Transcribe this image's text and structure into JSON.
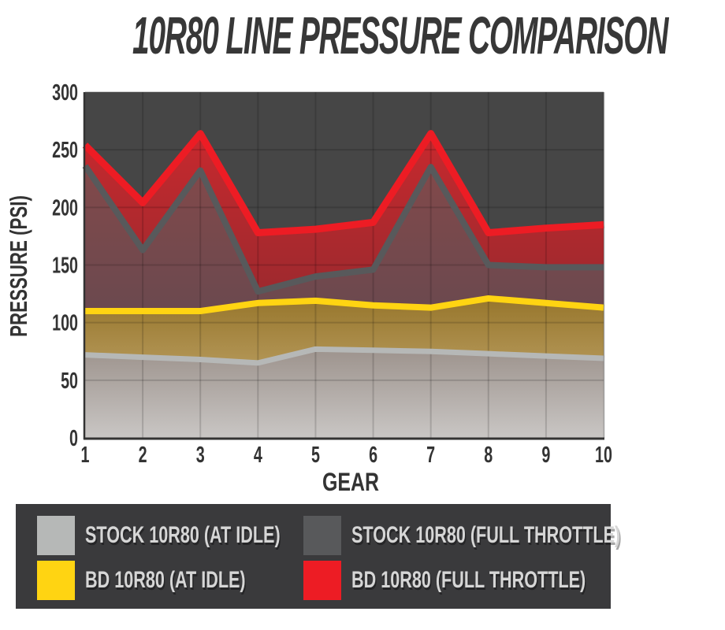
{
  "title": "10R80 LINE PRESSURE COMPARISON",
  "colors": {
    "page_bg": "#FFFFFF",
    "plot_bg": "#464646",
    "axis_text": "#333333",
    "title_text": "#373737",
    "legend_bg": "#3A3A3C",
    "legend_text": "#D6D6D6"
  },
  "chart_data": {
    "type": "area",
    "title": "10R80 LINE PRESSURE COMPARISON",
    "xlabel": "GEAR",
    "ylabel": "PRESSURE (PSI)",
    "x": [
      1,
      2,
      3,
      4,
      5,
      6,
      7,
      8,
      9,
      10
    ],
    "ylim": [
      0,
      300
    ],
    "ytick_step": 50,
    "grid": true,
    "legend_position": "bottom",
    "series": [
      {
        "name": "STOCK 10R80 (AT IDLE)",
        "color": "#B6B8B7",
        "line_width": 7,
        "values": [
          72,
          70,
          68,
          65,
          77,
          76,
          75,
          73,
          71,
          69
        ],
        "band_below": {
          "top_color": "#9D938D",
          "bottom_color": "#C9C6C4"
        }
      },
      {
        "name": "BD 10R80 (AT IDLE)",
        "color": "#FFD412",
        "line_width": 8,
        "values": [
          110,
          110,
          110,
          117,
          119,
          115,
          113,
          121,
          117,
          113
        ],
        "band_below": {
          "top_color": "#97762C",
          "bottom_color": "#B29555"
        }
      },
      {
        "name": "STOCK 10R80 (FULL THROTTLE)",
        "color": "#58595B",
        "line_width": 8,
        "values": [
          236,
          163,
          232,
          127,
          140,
          146,
          235,
          150,
          148,
          148
        ],
        "band_below": {
          "top_color": "#82494A",
          "bottom_color": "#6B494F"
        }
      },
      {
        "name": "BD 10R80 (FULL THROTTLE)",
        "color": "#ED1C24",
        "line_width": 9,
        "values": [
          254,
          204,
          264,
          178,
          181,
          187,
          264,
          178,
          182,
          185
        ],
        "band_below": {
          "top_color": "#C7292E",
          "bottom_color": "#9E292E"
        }
      }
    ]
  },
  "legend": {
    "items": [
      {
        "label": "STOCK 10R80 (AT IDLE)",
        "color": "#B6B8B7"
      },
      {
        "label": "BD 10R80 (AT IDLE)",
        "color": "#FFD412"
      },
      {
        "label": "STOCK 10R80 (FULL THROTTLE)",
        "color": "#58595B"
      },
      {
        "label": "BD 10R80 (FULL THROTTLE)",
        "color": "#ED1C24"
      }
    ]
  }
}
